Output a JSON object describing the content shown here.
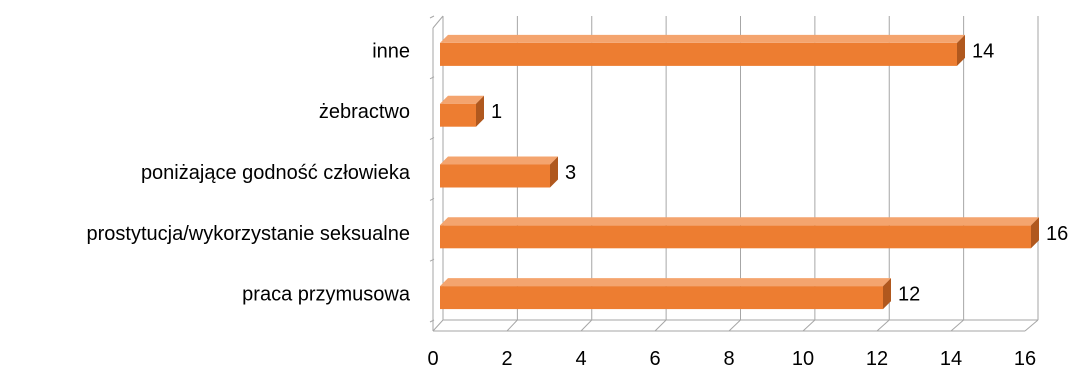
{
  "chart_data": {
    "type": "bar",
    "orientation": "horizontal",
    "style": "3d",
    "title": "",
    "xlabel": "",
    "ylabel": "",
    "categories": [
      "praca przymusowa",
      "prostytucja/wykorzystanie seksualne",
      "poniżające godność człowieka",
      "żebractwo",
      "inne"
    ],
    "values": [
      12,
      16,
      3,
      1,
      14
    ],
    "xlim": [
      0,
      16
    ],
    "xticks": [
      0,
      2,
      4,
      6,
      8,
      10,
      12,
      14,
      16
    ],
    "xtick_labels": [
      "0",
      "2",
      "4",
      "6",
      "8",
      "10",
      "12",
      "14",
      "16"
    ],
    "grid": true,
    "legend": "none",
    "data_labels": true,
    "colors": {
      "bar_front": "#ED7D31",
      "bar_top": "#F4A46E",
      "bar_side": "#B0581E",
      "grid": "#A6A6A6"
    }
  }
}
